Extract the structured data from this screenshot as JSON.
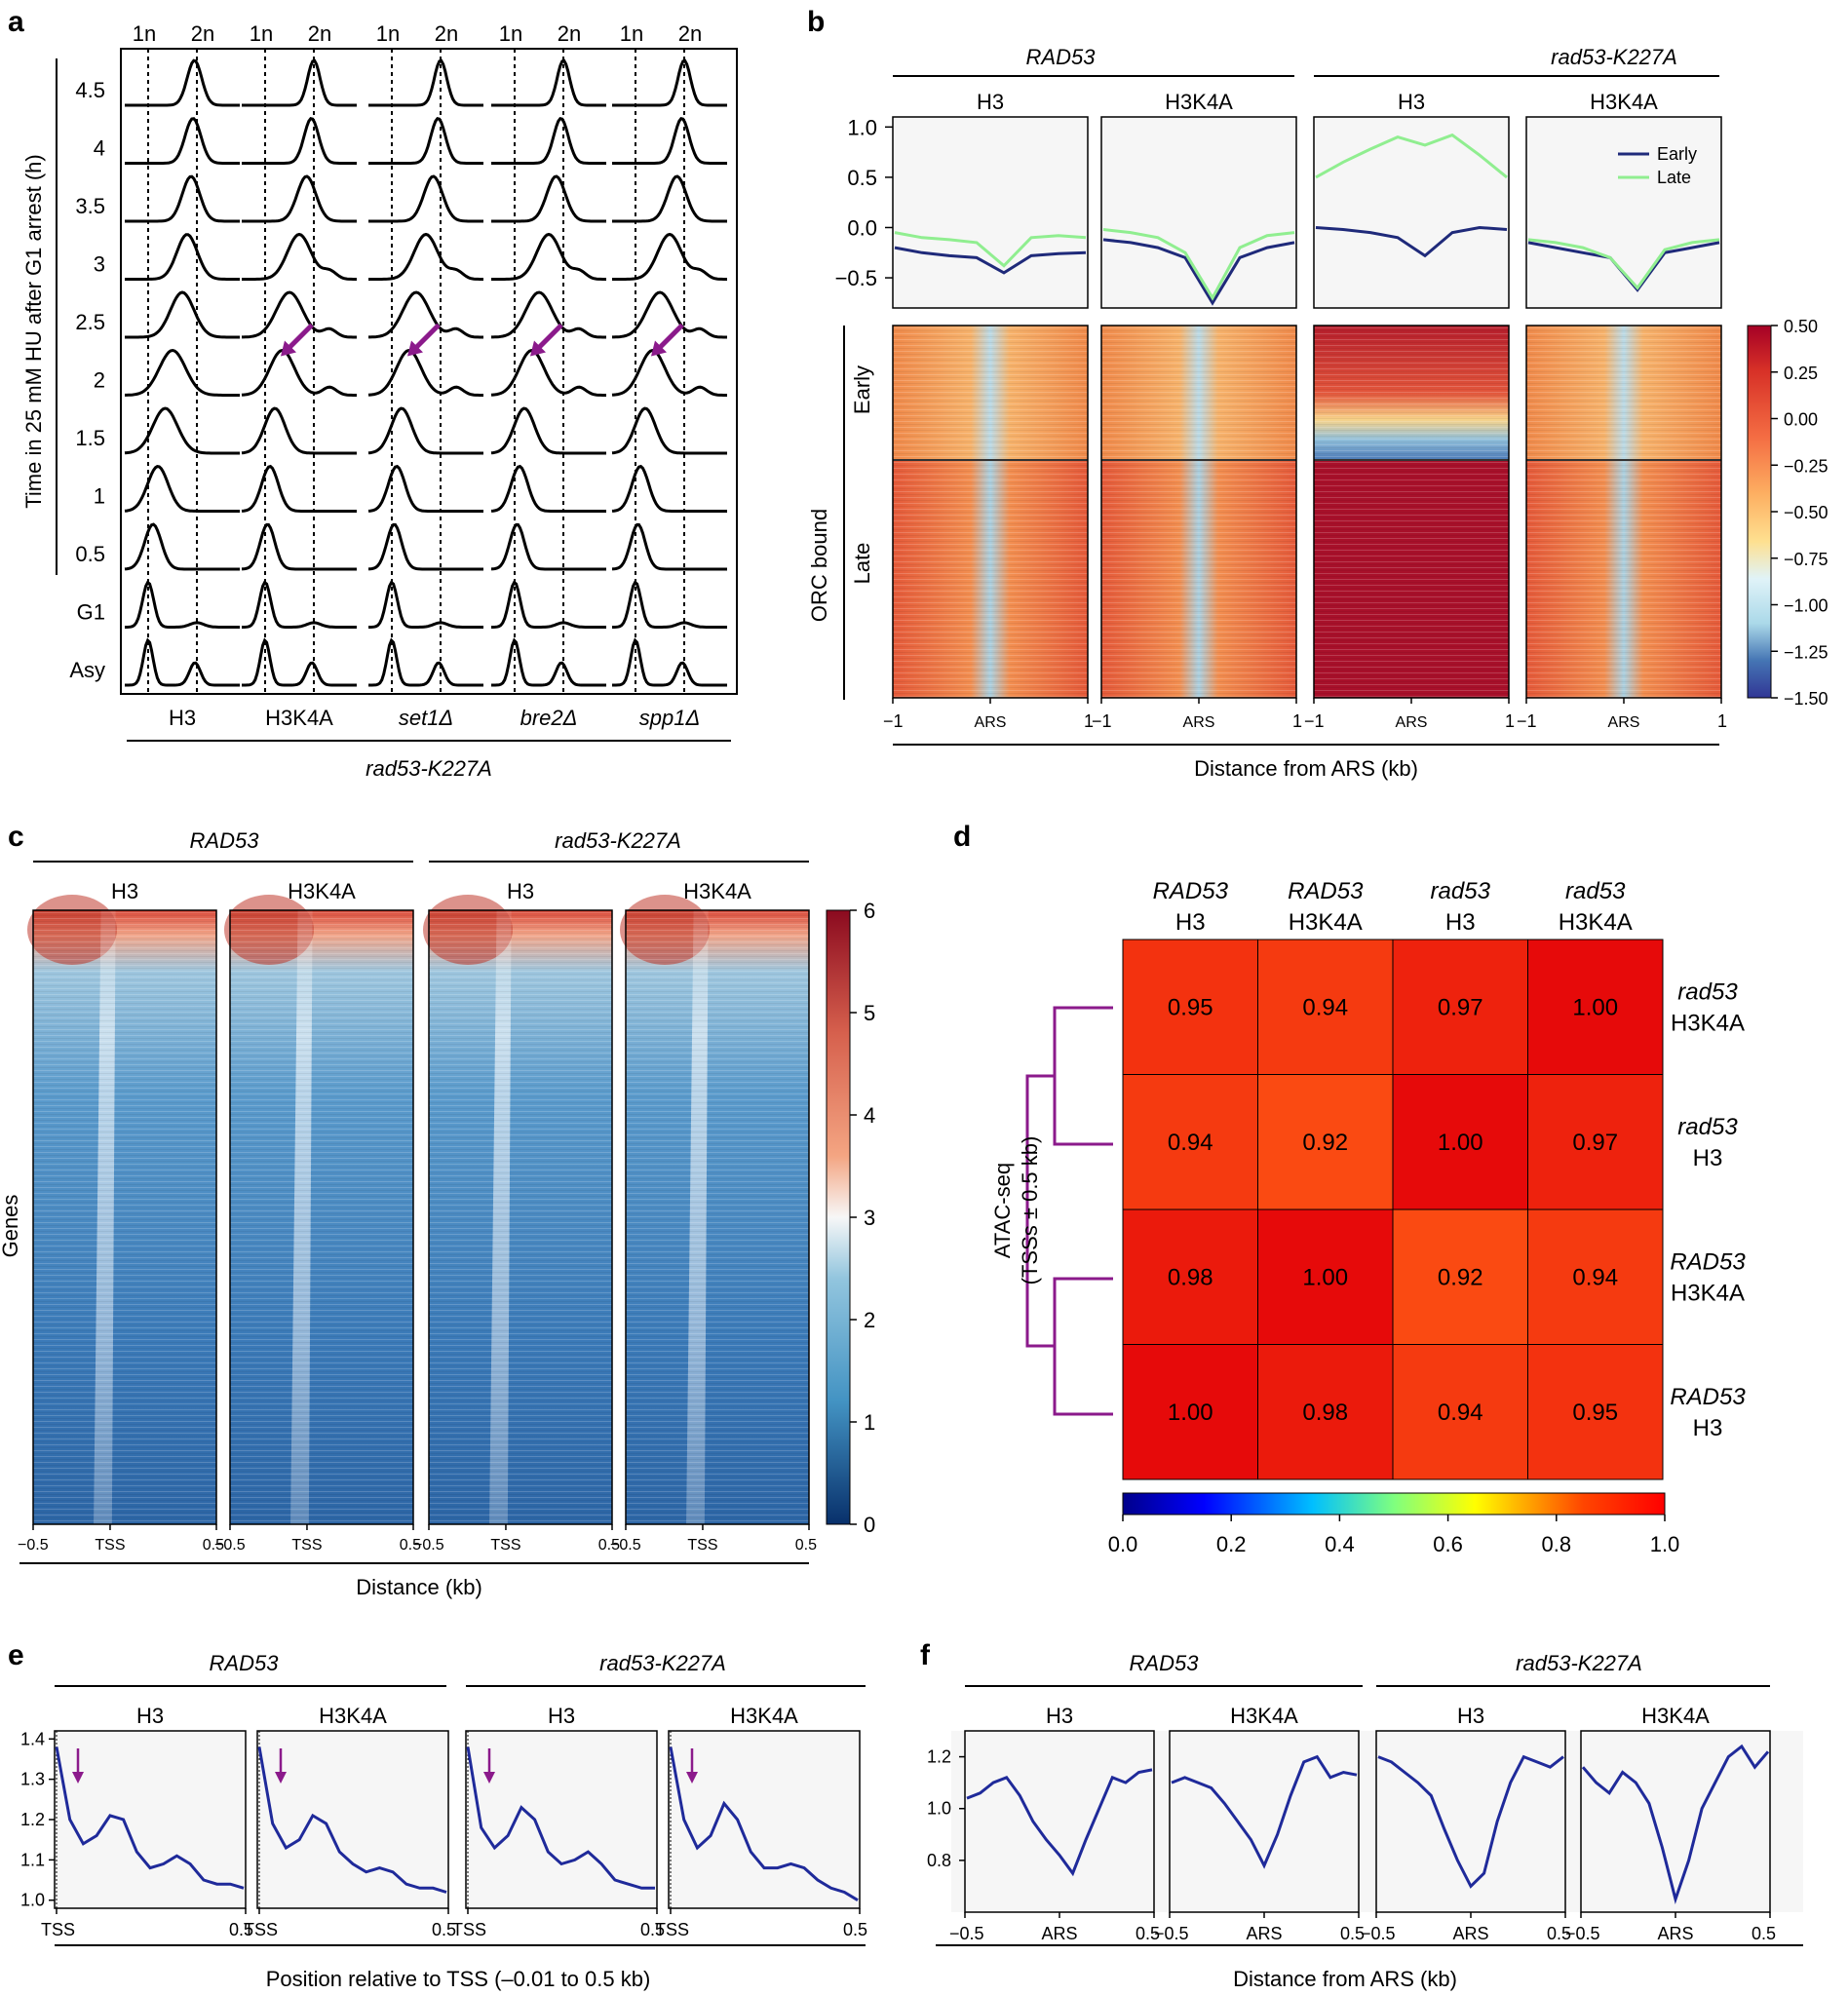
{
  "panel_letters": [
    "a",
    "b",
    "c",
    "d",
    "e",
    "f"
  ],
  "colors": {
    "early": "#1f2a7a",
    "late": "#90ee90",
    "profile": "#1f2a9a",
    "arrow": "#8b1a8b",
    "dendro": "#8b1a8b",
    "panel_bg": "#f6f6f6"
  },
  "chart_data": [
    {
      "id": "a",
      "type": "line",
      "title": "",
      "ylabel": "Time in 25 mM HU after G1 arrest (h)",
      "row_labels": [
        "4.5",
        "4",
        "3.5",
        "3",
        "2.5",
        "2",
        "1.5",
        "1",
        "0.5",
        "G1",
        "Asy"
      ],
      "columns": [
        {
          "label": "H3",
          "italic": false
        },
        {
          "label": "H3K4A",
          "italic": false
        },
        {
          "label": "set1Δ",
          "italic": true
        },
        {
          "label": "bre2Δ",
          "italic": true
        },
        {
          "label": "spp1Δ",
          "italic": true
        }
      ],
      "dna_markers": [
        "1n",
        "2n"
      ],
      "group_label": "rad53-K227A",
      "peak_position_by_row": {
        "H3": [
          0.95,
          0.92,
          0.88,
          0.8,
          0.7,
          0.5,
          0.35,
          0.2,
          0.1,
          0.0,
          0.0
        ],
        "mutant": [
          1.0,
          0.95,
          0.85,
          0.7,
          0.5,
          0.35,
          0.2,
          0.1,
          0.05,
          0.0,
          0.0
        ]
      },
      "arrow_row": "2"
    },
    {
      "id": "b",
      "type": "line",
      "groups": [
        "RAD53",
        "rad53-K227A"
      ],
      "panels": [
        "H3",
        "H3K4A",
        "H3",
        "H3K4A"
      ],
      "y_ticks": [
        "1.0",
        "0.5",
        "0.0",
        "−0.5"
      ],
      "ylim": [
        -0.8,
        1.1
      ],
      "legend": [
        "Early",
        "Late"
      ],
      "legend_loc": "top-right",
      "series": [
        {
          "panel": "RAD53 H3",
          "early": [
            -0.2,
            -0.25,
            -0.28,
            -0.3,
            -0.45,
            -0.28,
            -0.26,
            -0.25
          ],
          "late": [
            -0.05,
            -0.1,
            -0.12,
            -0.15,
            -0.38,
            -0.1,
            -0.08,
            -0.1
          ]
        },
        {
          "panel": "RAD53 H3K4A",
          "early": [
            -0.12,
            -0.15,
            -0.2,
            -0.3,
            -0.75,
            -0.3,
            -0.2,
            -0.15
          ],
          "late": [
            -0.02,
            -0.05,
            -0.1,
            -0.25,
            -0.7,
            -0.2,
            -0.08,
            -0.05
          ]
        },
        {
          "panel": "rad53-K227A H3",
          "early": [
            0.0,
            -0.02,
            -0.05,
            -0.1,
            -0.28,
            -0.05,
            0.0,
            -0.02
          ],
          "late": [
            0.5,
            0.65,
            0.78,
            0.9,
            0.82,
            0.92,
            0.72,
            0.5
          ]
        },
        {
          "panel": "rad53-K227A H3K4A",
          "early": [
            -0.15,
            -0.2,
            -0.25,
            -0.3,
            -0.62,
            -0.25,
            -0.2,
            -0.15
          ],
          "late": [
            -0.12,
            -0.15,
            -0.2,
            -0.3,
            -0.6,
            -0.22,
            -0.15,
            -0.12
          ]
        }
      ],
      "heatmap_rows": [
        "Early",
        "Late"
      ],
      "heatmap_ylabel": "ORC bound",
      "colorbar_ticks": [
        "0.50",
        "0.25",
        "0.00",
        "−0.25",
        "−0.50",
        "−0.75",
        "−1.00",
        "−1.25",
        "−1.50"
      ],
      "x_ticks": [
        "−1",
        "ARS",
        "1"
      ],
      "xlabel": "Distance from ARS (kb)"
    },
    {
      "id": "c",
      "type": "heatmap",
      "groups": [
        "RAD53",
        "rad53-K227A"
      ],
      "panels": [
        "H3",
        "H3K4A",
        "H3",
        "H3K4A"
      ],
      "ylabel": "Genes",
      "colorbar_ticks": [
        "6",
        "5",
        "4",
        "3",
        "2",
        "1",
        "0"
      ],
      "x_ticks": [
        "−0.5",
        "TSS",
        "0.5"
      ],
      "xlabel": "Distance (kb)"
    },
    {
      "id": "d",
      "type": "heatmap",
      "col_labels": [
        {
          "l1": "RAD53",
          "l2": "H3"
        },
        {
          "l1": "RAD53",
          "l2": "H3K4A"
        },
        {
          "l1": "rad53",
          "l2": "H3"
        },
        {
          "l1": "rad53",
          "l2": "H3K4A"
        }
      ],
      "row_labels": [
        {
          "l1": "rad53",
          "l2": "H3K4A"
        },
        {
          "l1": "rad53",
          "l2": "H3"
        },
        {
          "l1": "RAD53",
          "l2": "H3K4A"
        },
        {
          "l1": "RAD53",
          "l2": "H3"
        }
      ],
      "values": [
        [
          0.95,
          0.94,
          0.97,
          1.0
        ],
        [
          0.94,
          0.92,
          1.0,
          0.97
        ],
        [
          0.98,
          1.0,
          0.92,
          0.94
        ],
        [
          1.0,
          0.98,
          0.94,
          0.95
        ]
      ],
      "value_labels": [
        [
          "0.95",
          "0.94",
          "0.97",
          "1.00"
        ],
        [
          "0.94",
          "0.92",
          "1.00",
          "0.97"
        ],
        [
          "0.98",
          "1.00",
          "0.92",
          "0.94"
        ],
        [
          "1.00",
          "0.98",
          "0.94",
          "0.95"
        ]
      ],
      "ylabel_1": "ATAC-seq",
      "ylabel_2": "(TSSs ± 0.5 kb)",
      "colorbar_ticks": [
        "0.0",
        "0.2",
        "0.4",
        "0.6",
        "0.8",
        "1.0"
      ],
      "crange": [
        0.0,
        1.0
      ]
    },
    {
      "id": "e",
      "type": "line",
      "groups": [
        "RAD53",
        "rad53-K227A"
      ],
      "panels": [
        "H3",
        "H3K4A",
        "H3",
        "H3K4A"
      ],
      "y_ticks": [
        "1.4",
        "1.3",
        "1.2",
        "1.1",
        "1.0"
      ],
      "ylim": [
        0.98,
        1.42
      ],
      "x_ticks": [
        "TSS",
        "0.5"
      ],
      "xlabel": "Position relative to TSS (–0.01 to 0.5 kb)",
      "series": [
        [
          1.38,
          1.2,
          1.14,
          1.16,
          1.21,
          1.2,
          1.12,
          1.08,
          1.09,
          1.11,
          1.09,
          1.05,
          1.04,
          1.04,
          1.03
        ],
        [
          1.38,
          1.19,
          1.13,
          1.15,
          1.21,
          1.19,
          1.12,
          1.09,
          1.07,
          1.08,
          1.07,
          1.04,
          1.03,
          1.03,
          1.02
        ],
        [
          1.38,
          1.18,
          1.13,
          1.16,
          1.23,
          1.2,
          1.12,
          1.09,
          1.1,
          1.12,
          1.09,
          1.05,
          1.04,
          1.03,
          1.03
        ],
        [
          1.38,
          1.2,
          1.13,
          1.16,
          1.24,
          1.2,
          1.12,
          1.08,
          1.08,
          1.09,
          1.08,
          1.05,
          1.03,
          1.02,
          1.0
        ]
      ]
    },
    {
      "id": "f",
      "type": "line",
      "groups": [
        "RAD53",
        "rad53-K227A"
      ],
      "panels": [
        "H3",
        "H3K4A",
        "H3",
        "H3K4A"
      ],
      "y_ticks": [
        "1.2",
        "1.0",
        "0.8"
      ],
      "ylim": [
        0.6,
        1.3
      ],
      "x_ticks": [
        "−0.5",
        "ARS",
        "0.5"
      ],
      "xlabel": "Distance from ARS (kb)",
      "series": [
        [
          1.04,
          1.06,
          1.1,
          1.12,
          1.05,
          0.95,
          0.88,
          0.82,
          0.75,
          0.88,
          1.0,
          1.12,
          1.1,
          1.14,
          1.15
        ],
        [
          1.1,
          1.12,
          1.1,
          1.08,
          1.02,
          0.95,
          0.88,
          0.78,
          0.9,
          1.05,
          1.18,
          1.2,
          1.12,
          1.14,
          1.13
        ],
        [
          1.2,
          1.18,
          1.14,
          1.1,
          1.05,
          0.92,
          0.8,
          0.7,
          0.75,
          0.95,
          1.1,
          1.2,
          1.18,
          1.16,
          1.2
        ],
        [
          1.16,
          1.1,
          1.06,
          1.14,
          1.1,
          1.02,
          0.85,
          0.65,
          0.8,
          1.0,
          1.1,
          1.2,
          1.24,
          1.16,
          1.22
        ]
      ]
    }
  ]
}
